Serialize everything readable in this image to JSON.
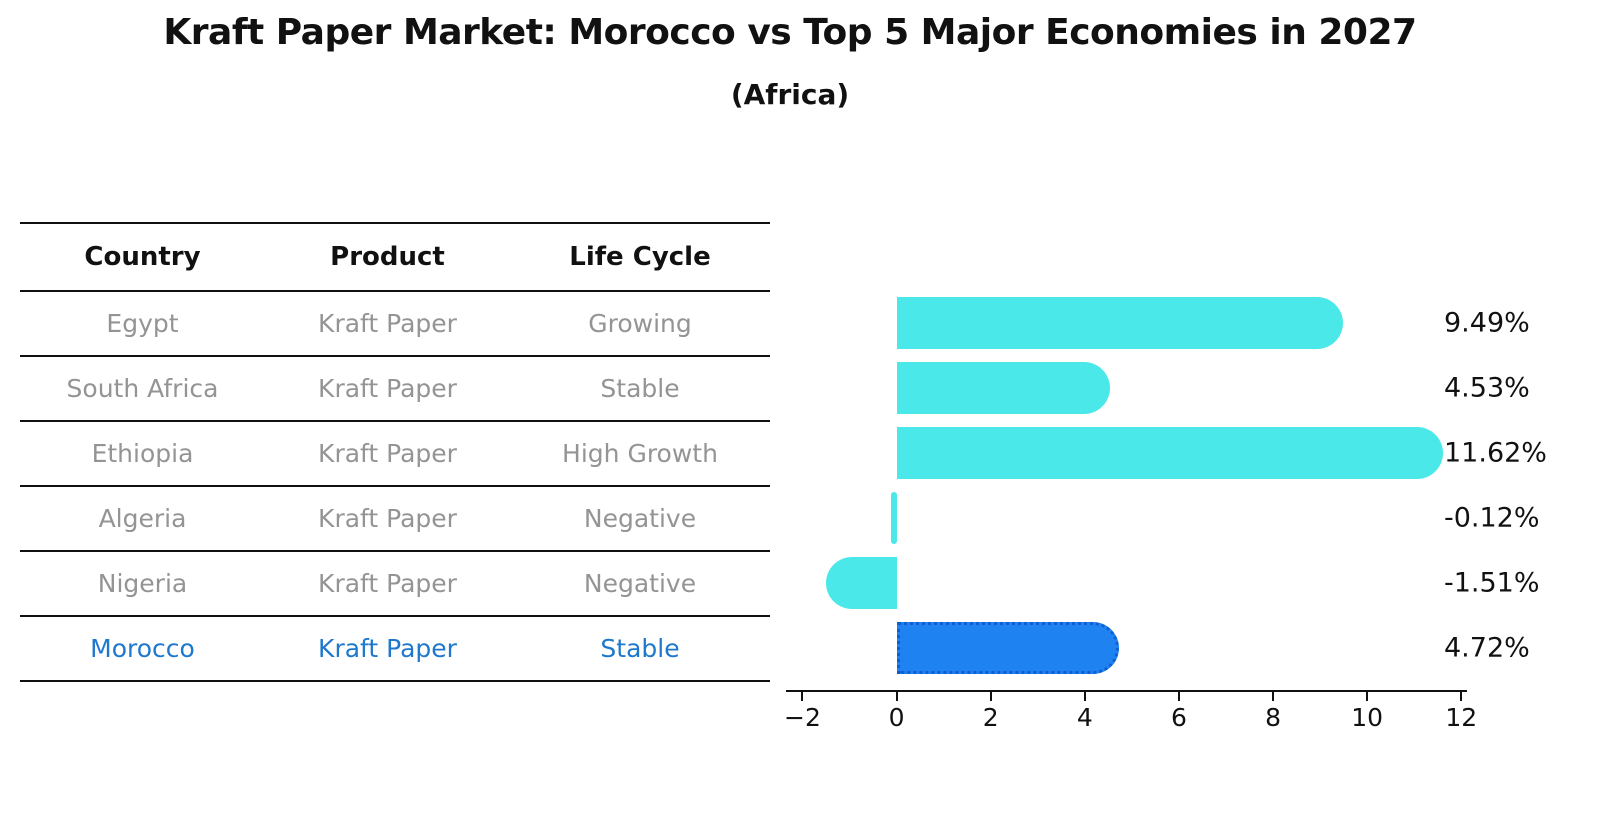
{
  "header": {
    "title": "Kraft Paper Market: Morocco vs Top 5 Major Economies in 2027",
    "subtitle": "(Africa)"
  },
  "table": {
    "headers": [
      "Country",
      "Product",
      "Life Cycle"
    ],
    "rows": [
      {
        "country": "Egypt",
        "product": "Kraft Paper",
        "life_cycle": "Growing",
        "highlight": false
      },
      {
        "country": "South Africa",
        "product": "Kraft Paper",
        "life_cycle": "Stable",
        "highlight": false
      },
      {
        "country": "Ethiopia",
        "product": "Kraft Paper",
        "life_cycle": "High Growth",
        "highlight": false
      },
      {
        "country": "Algeria",
        "product": "Kraft Paper",
        "life_cycle": "Negative",
        "highlight": false
      },
      {
        "country": "Nigeria",
        "product": "Kraft Paper",
        "life_cycle": "Negative",
        "highlight": false
      },
      {
        "country": "Morocco",
        "product": "Kraft Paper",
        "life_cycle": "Stable",
        "highlight": true
      }
    ]
  },
  "chart_data": {
    "type": "bar",
    "orientation": "horizontal",
    "title": "Kraft Paper Market: Morocco vs Top 5 Major Economies in 2027 (Africa)",
    "categories": [
      "Egypt",
      "South Africa",
      "Ethiopia",
      "Algeria",
      "Nigeria",
      "Morocco"
    ],
    "values": [
      9.49,
      4.53,
      11.62,
      -0.12,
      -1.51,
      4.72
    ],
    "value_labels": [
      "9.49%",
      "4.53%",
      "11.62%",
      "-0.12%",
      "-1.51%",
      "4.72%"
    ],
    "x_ticks": [
      -2,
      0,
      2,
      4,
      6,
      8,
      10,
      12
    ],
    "x_tick_labels": [
      "−2",
      "0",
      "2",
      "4",
      "6",
      "8",
      "10",
      "12"
    ],
    "xlim": [
      -2.35,
      12.1
    ],
    "grid": false,
    "legend": "none",
    "highlight_index": 5
  },
  "colors": {
    "bar": "#4AE8E8",
    "highlight_bar": "#1E82F0",
    "highlight_bar_border": "#0F5FD0",
    "muted_text": "#949494",
    "highlight_text": "#1E78CC",
    "axis": "#111111"
  }
}
